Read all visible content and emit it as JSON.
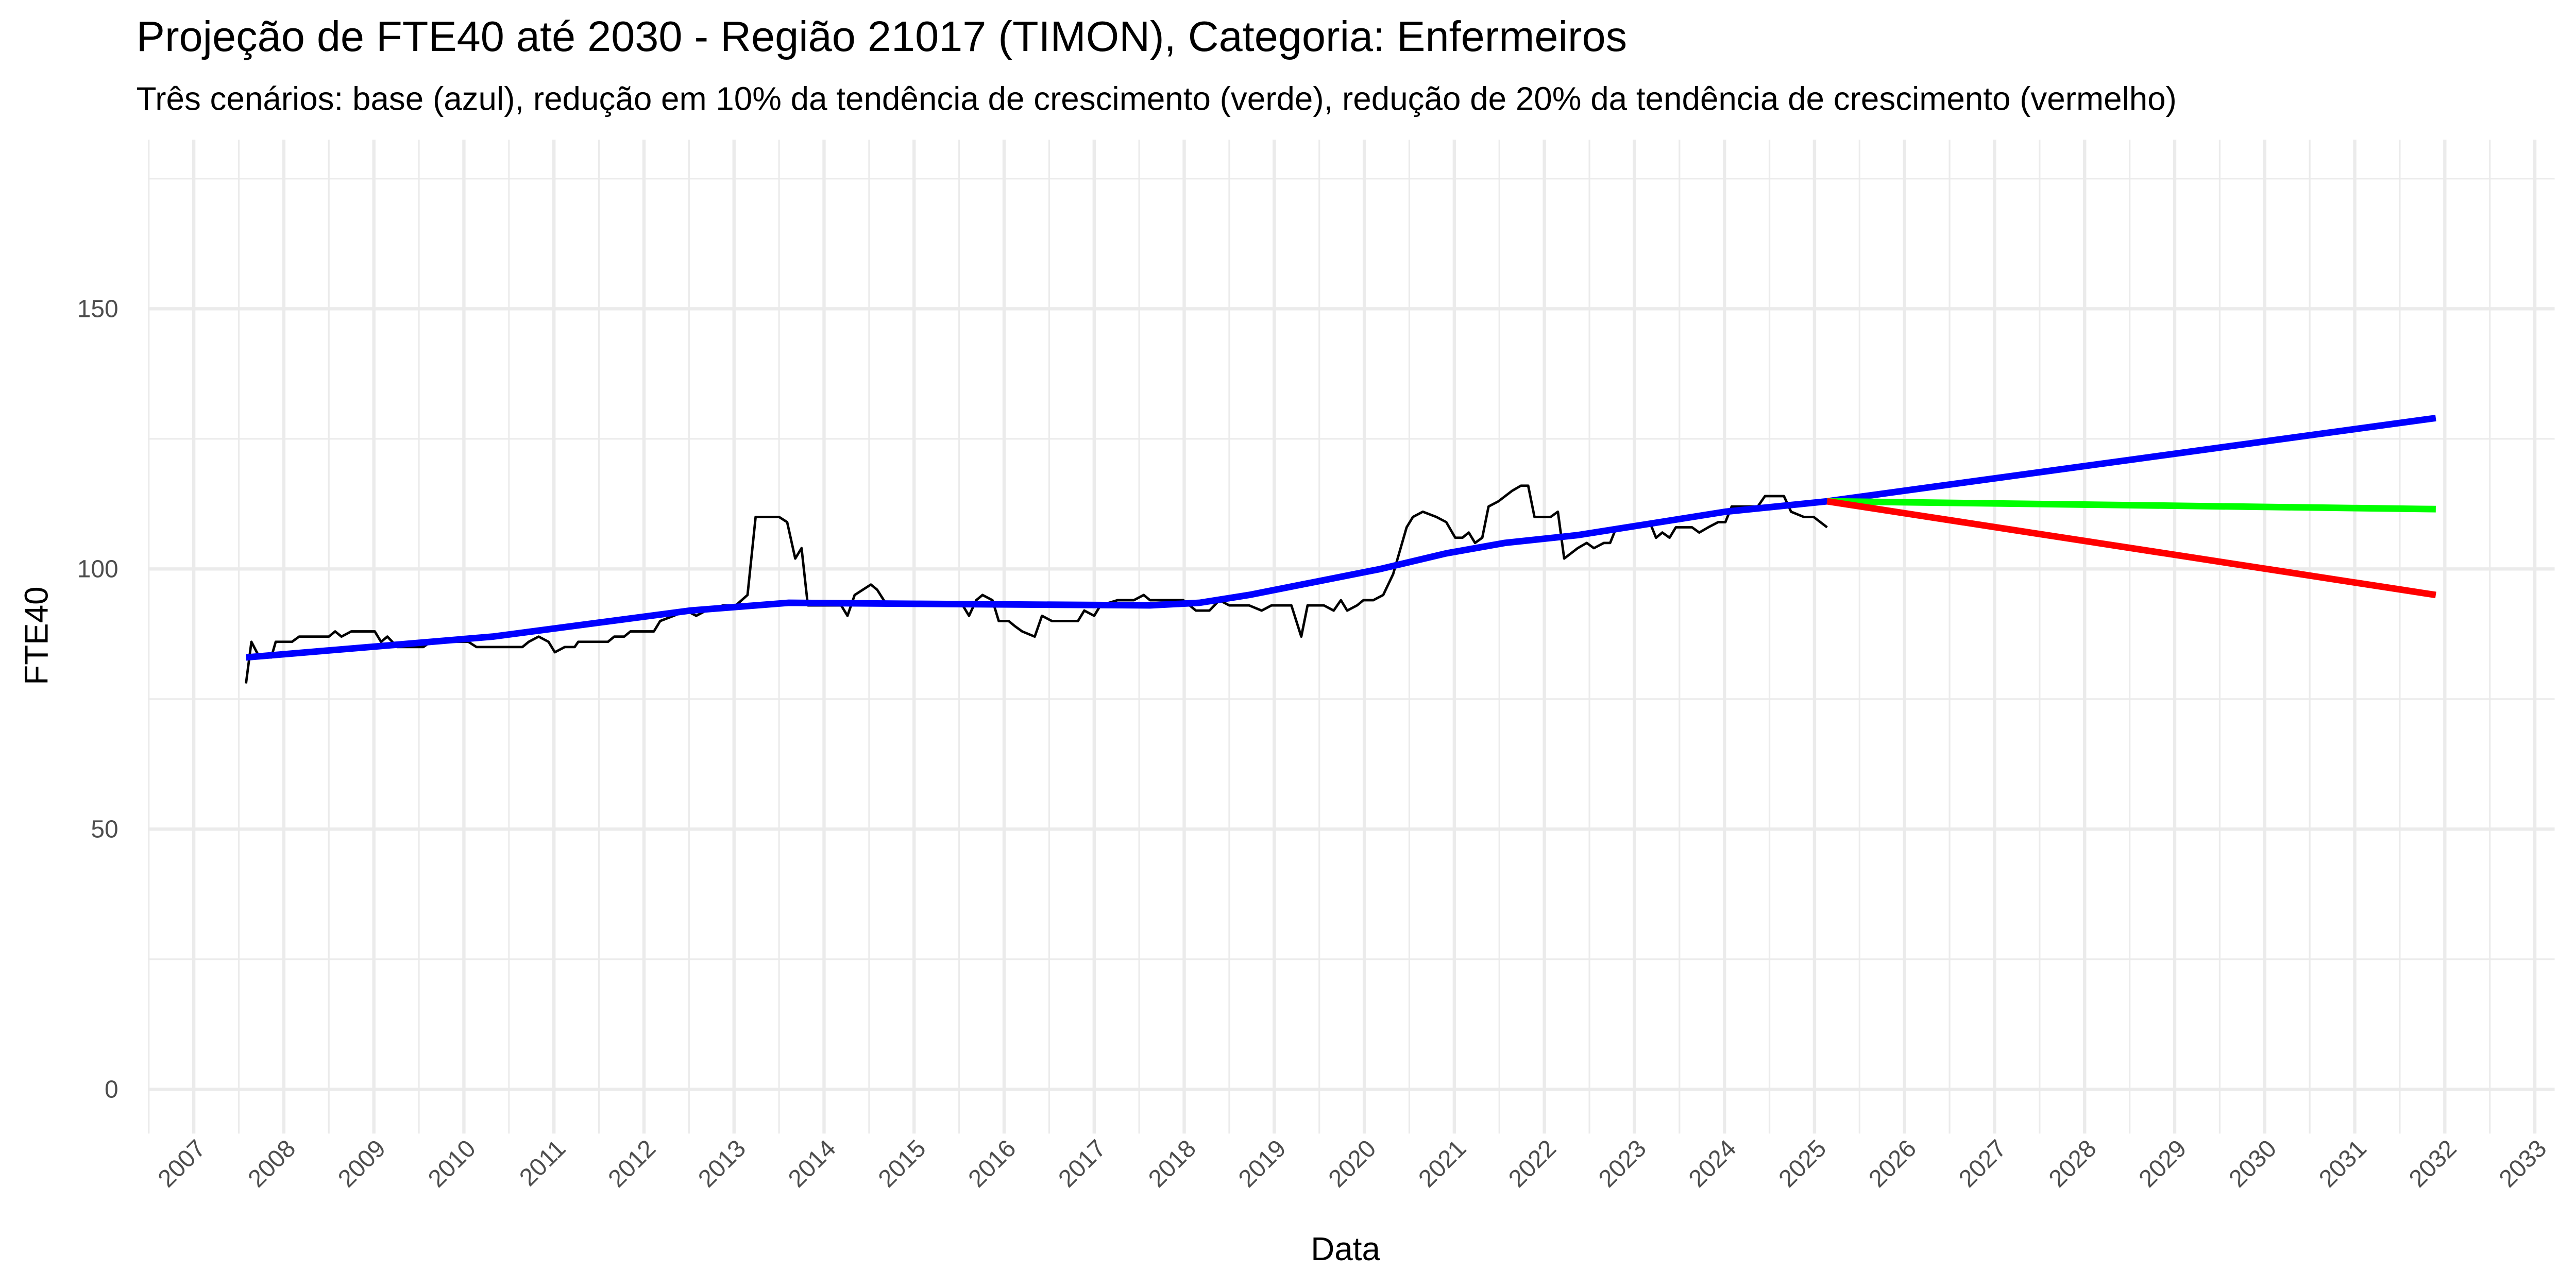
{
  "chart_data": {
    "type": "line",
    "title": "Projeção de FTE40 até 2030 - Região 21017 (TIMON), Categoria: Enfermeiros",
    "subtitle": "Três cenários: base (azul), redução em 10% da tendência de crescimento (verde), redução de 20% da tendência de crescimento (vermelho)",
    "x_label": "Data",
    "y_label": "FTE40",
    "xlim": [
      2006.49,
      2033.22
    ],
    "ylim": [
      -8.5,
      182.5
    ],
    "xticks": [
      2007,
      2008,
      2009,
      2010,
      2011,
      2012,
      2013,
      2014,
      2015,
      2016,
      2017,
      2018,
      2019,
      2020,
      2021,
      2022,
      2023,
      2024,
      2025,
      2026,
      2027,
      2028,
      2029,
      2030,
      2031,
      2032,
      2033
    ],
    "yticks": [
      0,
      50,
      100,
      150
    ],
    "grid": true,
    "minor_grid": true,
    "series": [
      {
        "color": "#000000",
        "width": 1.5,
        "x": [
          2007.58,
          2007.64,
          2007.73,
          2007.86,
          2007.91,
          2008.09,
          2008.17,
          2008.5,
          2008.57,
          2008.64,
          2008.75,
          2009.01,
          2009.08,
          2009.15,
          2009.26,
          2009.55,
          2009.63,
          2010.05,
          2010.14,
          2010.65,
          2010.72,
          2010.83,
          2010.94,
          2011.01,
          2011.12,
          2011.23,
          2011.27,
          2011.6,
          2011.67,
          2011.78,
          2011.85,
          2012.11,
          2012.18,
          2012.33,
          2012.47,
          2012.58,
          2012.69,
          2012.88,
          2013.02,
          2013.15,
          2013.24,
          2013.5,
          2013.59,
          2013.68,
          2013.75,
          2013.82,
          2014.19,
          2014.26,
          2014.34,
          2014.52,
          2014.59,
          2014.7,
          2015.07,
          2015.54,
          2015.61,
          2015.69,
          2015.76,
          2015.87,
          2015.94,
          2016.05,
          2016.12,
          2016.2,
          2016.34,
          2016.42,
          2016.53,
          2016.82,
          2016.89,
          2017.0,
          2017.07,
          2017.26,
          2017.44,
          2017.55,
          2017.62,
          2017.99,
          2018.13,
          2018.28,
          2018.39,
          2018.5,
          2018.72,
          2018.86,
          2018.97,
          2019.19,
          2019.3,
          2019.37,
          2019.55,
          2019.66,
          2019.74,
          2019.81,
          2019.92,
          2019.99,
          2020.1,
          2020.21,
          2020.32,
          2020.47,
          2020.54,
          2020.65,
          2020.8,
          2020.91,
          2021.01,
          2021.09,
          2021.16,
          2021.23,
          2021.31,
          2021.38,
          2021.49,
          2021.64,
          2021.74,
          2021.82,
          2021.89,
          2022.07,
          2022.15,
          2022.22,
          2022.37,
          2022.47,
          2022.55,
          2022.66,
          2022.73,
          2022.8,
          2023.06,
          2023.17,
          2023.24,
          2023.31,
          2023.39,
          2023.46,
          2023.64,
          2023.72,
          2023.82,
          2023.93,
          2024.01,
          2024.08,
          2024.37,
          2024.45,
          2024.66,
          2024.74,
          2024.88,
          2024.99,
          2025.14
        ],
        "values": [
          78,
          86,
          83,
          83,
          86,
          86,
          87,
          87,
          88,
          87,
          88,
          88,
          86,
          87,
          85,
          85,
          86,
          86,
          85,
          85,
          86,
          87,
          86,
          84,
          85,
          85,
          86,
          86,
          87,
          87,
          88,
          88,
          90,
          91,
          92,
          91,
          92,
          93,
          93,
          95,
          110,
          110,
          109,
          102,
          104,
          93,
          93,
          91,
          95,
          97,
          96,
          93,
          93,
          93,
          91,
          94,
          95,
          94,
          90,
          90,
          89,
          88,
          87,
          91,
          90,
          90,
          92,
          91,
          93,
          94,
          94,
          95,
          94,
          94,
          92,
          92,
          94,
          93,
          93,
          92,
          93,
          93,
          87,
          93,
          93,
          92,
          94,
          92,
          93,
          94,
          94,
          95,
          99,
          108,
          110,
          111,
          110,
          109,
          106,
          106,
          107,
          105,
          106,
          112,
          113,
          115,
          116,
          116,
          110,
          110,
          111,
          102,
          104,
          105,
          104,
          105,
          105,
          108,
          108,
          109,
          106,
          107,
          106,
          108,
          108,
          107,
          108,
          109,
          109,
          112,
          112,
          114,
          114,
          111,
          110,
          110,
          108
        ]
      },
      {
        "color": "#0000ff",
        "width": 4,
        "x": [
          2007.58,
          2010.32,
          2012.51,
          2013.61,
          2015.07,
          2017.62,
          2018.17,
          2018.72,
          2019.45,
          2020.18,
          2020.91,
          2021.56,
          2022.37,
          2023.1,
          2024.01,
          2025.14,
          2031.9
        ],
        "values": [
          83,
          87,
          92,
          93.5,
          93.3,
          93,
          93.5,
          95,
          97.5,
          100,
          103,
          105,
          106.5,
          108.5,
          111,
          113,
          129
        ]
      },
      {
        "color": "#00ff00",
        "width": 4,
        "x": [
          2025.14,
          2031.9
        ],
        "values": [
          113,
          111.5
        ]
      },
      {
        "color": "#ff0000",
        "width": 4,
        "x": [
          2025.14,
          2031.9
        ],
        "values": [
          113,
          95
        ]
      }
    ]
  }
}
